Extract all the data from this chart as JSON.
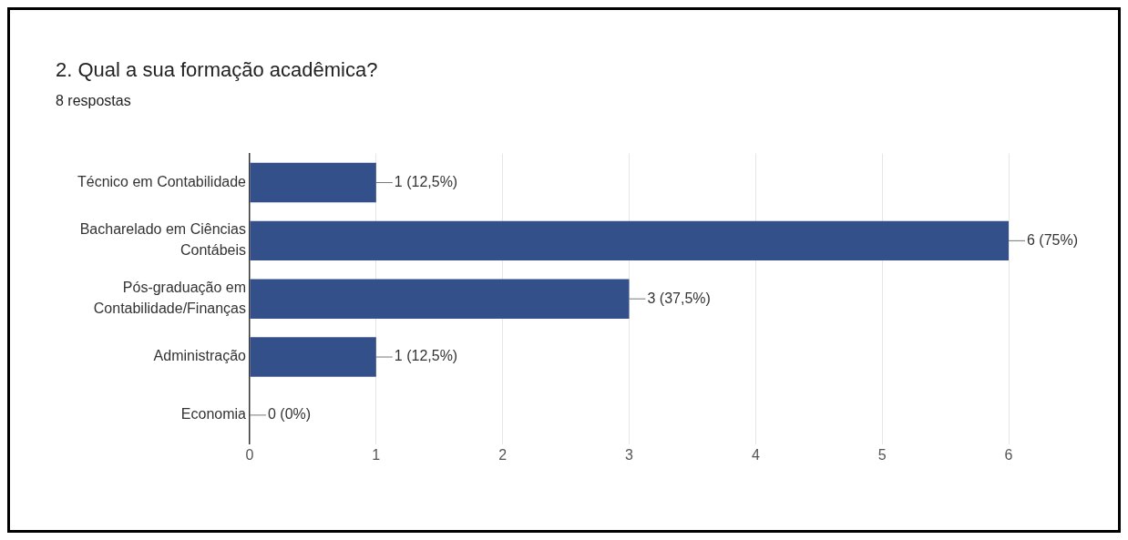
{
  "chart_data": {
    "type": "bar",
    "orientation": "horizontal",
    "title": "2. Qual a sua formação acadêmica?",
    "subtitle": "8 respostas",
    "categories": [
      "Técnico em Contabilidade",
      "Bacharelado em Ciências Contábeis",
      "Pós-graduação em Contabilidade/Finanças",
      "Administração",
      "Economia"
    ],
    "values": [
      1,
      6,
      3,
      1,
      0
    ],
    "color": "#34508a",
    "value_labels": [
      "1 (12,5%)",
      "6 (75%)",
      "3 (37,5%)",
      "1 (12,5%)",
      "0 (0%)"
    ],
    "xlim": [
      0,
      6
    ],
    "xticks": [
      0,
      1,
      2,
      3,
      4,
      5,
      6
    ],
    "grid": "x",
    "legend": false
  }
}
